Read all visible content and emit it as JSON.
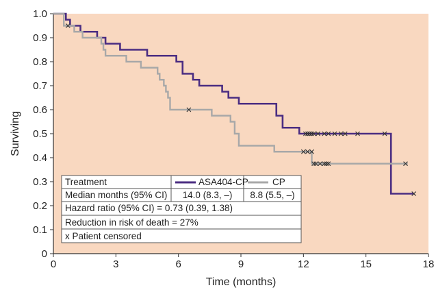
{
  "chart_data": {
    "type": "line",
    "xlabel": "Time (months)",
    "ylabel": "Surviving",
    "xlim": [
      0,
      18
    ],
    "ylim": [
      0,
      1.0
    ],
    "x_ticks": [
      "0",
      "3",
      "6",
      "9",
      "12",
      "15",
      "18"
    ],
    "y_ticks": [
      "0",
      "0.1",
      "0.2",
      "0.3",
      "0.4",
      "0.5",
      "0.6",
      "0.7",
      "0.8",
      "0.9",
      "1.0"
    ],
    "grid": false,
    "plot_background": "#f9d8c0",
    "series": [
      {
        "name": "ASA404-CP",
        "color": "#4b2d82",
        "steps": [
          [
            0,
            1.0
          ],
          [
            0.6,
            0.975
          ],
          [
            0.8,
            0.95
          ],
          [
            1.3,
            0.925
          ],
          [
            2.1,
            0.9
          ],
          [
            2.5,
            0.875
          ],
          [
            3.2,
            0.85
          ],
          [
            4.5,
            0.825
          ],
          [
            5.9,
            0.8
          ],
          [
            6.2,
            0.75
          ],
          [
            6.7,
            0.725
          ],
          [
            7.0,
            0.7
          ],
          [
            8.1,
            0.675
          ],
          [
            8.4,
            0.65
          ],
          [
            8.9,
            0.625
          ],
          [
            10.7,
            0.575
          ],
          [
            11.0,
            0.525
          ],
          [
            11.8,
            0.5
          ],
          [
            16.2,
            0.25
          ],
          [
            17.3,
            0.25
          ]
        ],
        "censored": [
          [
            12.1,
            0.5
          ],
          [
            12.2,
            0.5
          ],
          [
            12.3,
            0.5
          ],
          [
            12.4,
            0.5
          ],
          [
            12.5,
            0.5
          ],
          [
            12.7,
            0.5
          ],
          [
            13.0,
            0.5
          ],
          [
            13.2,
            0.5
          ],
          [
            13.5,
            0.5
          ],
          [
            13.8,
            0.5
          ],
          [
            14.0,
            0.5
          ],
          [
            14.6,
            0.5
          ],
          [
            15.9,
            0.5
          ],
          [
            17.3,
            0.25
          ]
        ]
      },
      {
        "name": "CP",
        "color": "#a8a8a8",
        "steps": [
          [
            0,
            1.0
          ],
          [
            0.5,
            0.95
          ],
          [
            1.0,
            0.925
          ],
          [
            1.4,
            0.9
          ],
          [
            2.3,
            0.875
          ],
          [
            2.4,
            0.85
          ],
          [
            2.5,
            0.825
          ],
          [
            3.5,
            0.8
          ],
          [
            4.2,
            0.775
          ],
          [
            5.0,
            0.75
          ],
          [
            5.1,
            0.725
          ],
          [
            5.3,
            0.7
          ],
          [
            5.4,
            0.675
          ],
          [
            5.5,
            0.65
          ],
          [
            5.6,
            0.6
          ],
          [
            7.6,
            0.575
          ],
          [
            8.5,
            0.55
          ],
          [
            8.7,
            0.5
          ],
          [
            8.9,
            0.45
          ],
          [
            10.6,
            0.425
          ],
          [
            12.4,
            0.375
          ],
          [
            17.0,
            0.375
          ]
        ],
        "censored": [
          [
            0.7,
            0.95
          ],
          [
            6.5,
            0.6
          ],
          [
            12.0,
            0.425
          ],
          [
            12.2,
            0.425
          ],
          [
            12.4,
            0.425
          ],
          [
            12.5,
            0.375
          ],
          [
            12.6,
            0.375
          ],
          [
            12.8,
            0.375
          ],
          [
            13.0,
            0.375
          ],
          [
            13.1,
            0.375
          ],
          [
            13.2,
            0.375
          ],
          [
            16.9,
            0.375
          ]
        ]
      }
    ],
    "table": {
      "col_treatment": "Treatment",
      "series_a_label": "ASA404-CP",
      "series_b_label": "CP",
      "median_label": "Median months (95% CI)",
      "median_a": "14.0 (8.3, –)",
      "median_b": "8.8 (5.5, –)",
      "hazard": "Hazard ratio (95% CI) = 0.73 (0.39, 1.38)",
      "reduction": "Reduction in risk of death = 27%",
      "censored_note": "x Patient censored"
    }
  }
}
